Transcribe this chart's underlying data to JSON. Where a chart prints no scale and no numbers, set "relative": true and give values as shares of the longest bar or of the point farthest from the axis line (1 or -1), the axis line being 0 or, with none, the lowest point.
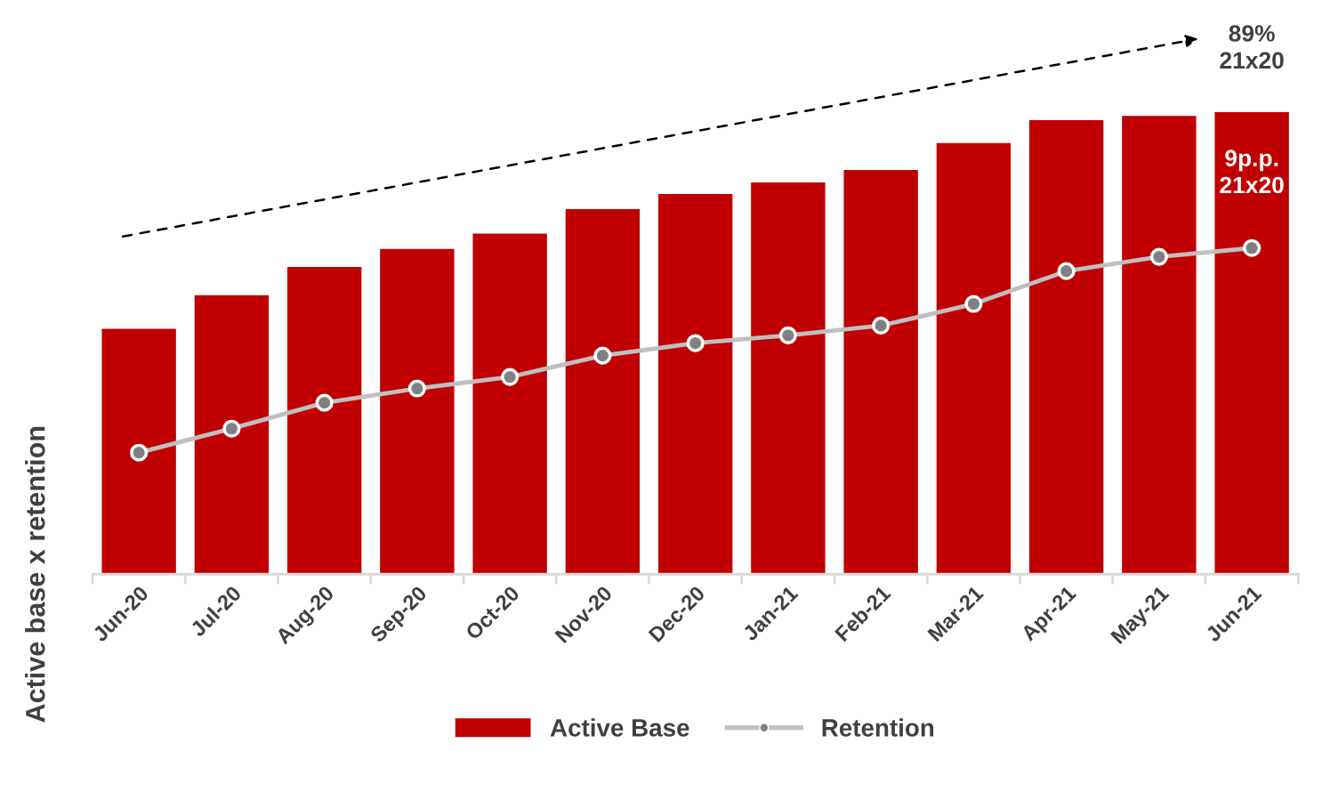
{
  "chart_data": {
    "type": "bar",
    "relative": true,
    "ylabel": "Active base x retention",
    "categories": [
      "Jun-20",
      "Jul-20",
      "Aug-20",
      "Sep-20",
      "Oct-20",
      "Nov-20",
      "Dec-20",
      "Jan-21",
      "Feb-21",
      "Mar-21",
      "Apr-21",
      "May-21",
      "Jun-21"
    ],
    "series": [
      {
        "name": "Active Base",
        "color": "#c00000",
        "values": [
          0.531,
          0.604,
          0.665,
          0.704,
          0.737,
          0.79,
          0.823,
          0.848,
          0.875,
          0.933,
          0.983,
          0.992,
          1.0
        ]
      },
      {
        "name": "Retention",
        "type": "line",
        "color": "#bfbfbf",
        "marker": "circle",
        "values": [
          0.263,
          0.315,
          0.371,
          0.402,
          0.427,
          0.473,
          0.5,
          0.517,
          0.538,
          0.585,
          0.656,
          0.687,
          0.706
        ]
      }
    ],
    "annotations": [
      "89%\n21x20",
      "9p.p.\n21x20"
    ],
    "legend": "bottom",
    "grid": false,
    "tick_labels": "x"
  }
}
